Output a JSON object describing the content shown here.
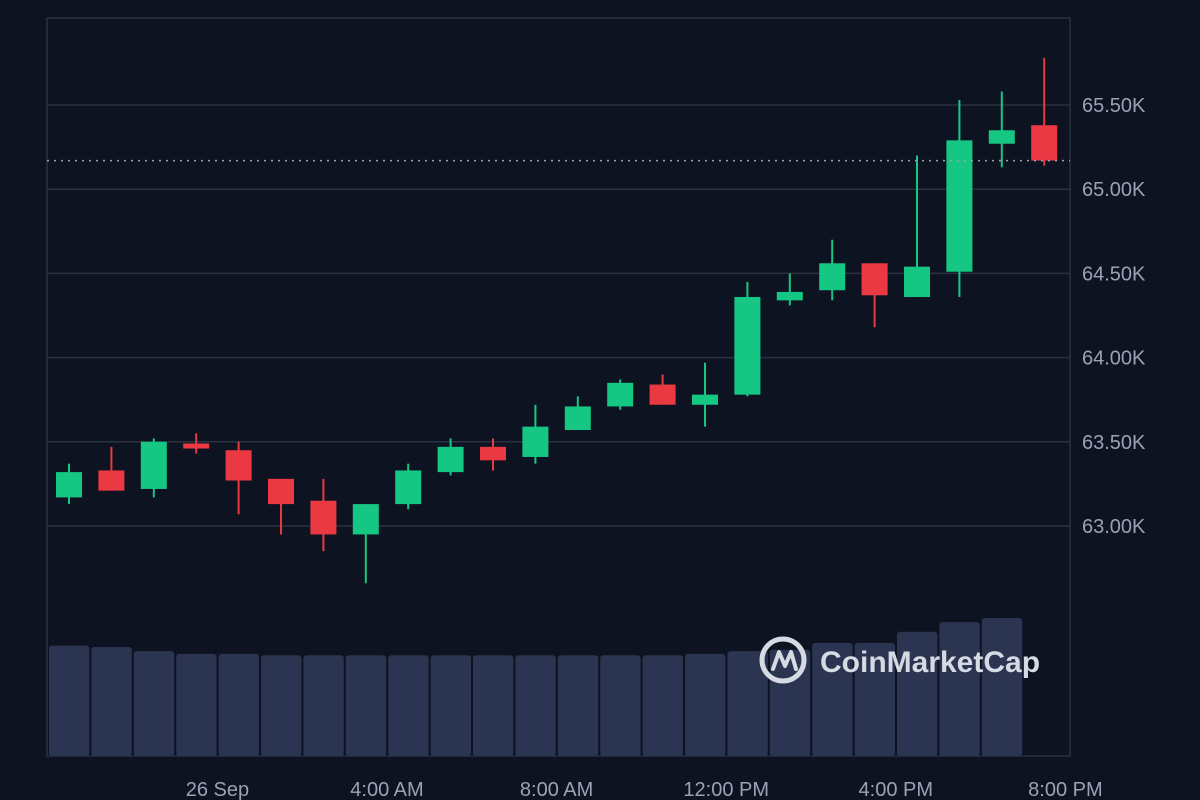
{
  "brand": {
    "name": "CoinMarketCap",
    "color": "#d6dae3"
  },
  "colors": {
    "background": "#0d1321",
    "grid": "#2a3140",
    "up": "#16c784",
    "down": "#ea3943",
    "volume": "#2b3450",
    "current_price_line": "#9aa3b5"
  },
  "chart_data": {
    "type": "candlestick",
    "title": "",
    "xlabel": "",
    "ylabel": "",
    "ylim": [
      62000,
      66500
    ],
    "y_ticks": [
      {
        "value": 63000,
        "label": "63.00K"
      },
      {
        "value": 63500,
        "label": "63.50K"
      },
      {
        "value": 64000,
        "label": "64.00K"
      },
      {
        "value": 64500,
        "label": "64.50K"
      },
      {
        "value": 65000,
        "label": "65.00K"
      },
      {
        "value": 65500,
        "label": "65.50K"
      }
    ],
    "x_ticks": [
      {
        "index": 3.5,
        "label": "26 Sep"
      },
      {
        "index": 7.5,
        "label": "4:00 AM"
      },
      {
        "index": 11.5,
        "label": "8:00 AM"
      },
      {
        "index": 15.5,
        "label": "12:00 PM"
      },
      {
        "index": 19.5,
        "label": "4:00 PM"
      },
      {
        "index": 23.5,
        "label": "8:00 PM"
      }
    ],
    "current_price": 65170,
    "candles": [
      {
        "open": 63170,
        "high": 63370,
        "low": 63130,
        "close": 63320
      },
      {
        "open": 63330,
        "high": 63470,
        "low": 63210,
        "close": 63210
      },
      {
        "open": 63220,
        "high": 63520,
        "low": 63170,
        "close": 63500
      },
      {
        "open": 63490,
        "high": 63550,
        "low": 63430,
        "close": 63460
      },
      {
        "open": 63450,
        "high": 63500,
        "low": 63070,
        "close": 63270
      },
      {
        "open": 63280,
        "high": 63280,
        "low": 62950,
        "close": 63130
      },
      {
        "open": 63150,
        "high": 63280,
        "low": 62850,
        "close": 62950
      },
      {
        "open": 62950,
        "high": 63130,
        "low": 62660,
        "close": 63130
      },
      {
        "open": 63130,
        "high": 63370,
        "low": 63100,
        "close": 63330
      },
      {
        "open": 63320,
        "high": 63520,
        "low": 63300,
        "close": 63470
      },
      {
        "open": 63470,
        "high": 63520,
        "low": 63330,
        "close": 63390
      },
      {
        "open": 63410,
        "high": 63720,
        "low": 63370,
        "close": 63590
      },
      {
        "open": 63570,
        "high": 63770,
        "low": 63570,
        "close": 63710
      },
      {
        "open": 63710,
        "high": 63870,
        "low": 63690,
        "close": 63850
      },
      {
        "open": 63840,
        "high": 63900,
        "low": 63720,
        "close": 63720
      },
      {
        "open": 63720,
        "high": 63970,
        "low": 63590,
        "close": 63780
      },
      {
        "open": 63780,
        "high": 64450,
        "low": 63770,
        "close": 64360
      },
      {
        "open": 64340,
        "high": 64500,
        "low": 64310,
        "close": 64390
      },
      {
        "open": 64400,
        "high": 64700,
        "low": 64340,
        "close": 64560
      },
      {
        "open": 64560,
        "high": 64560,
        "low": 64180,
        "close": 64370
      },
      {
        "open": 64360,
        "high": 65200,
        "low": 64360,
        "close": 64540
      },
      {
        "open": 64510,
        "high": 65530,
        "low": 64360,
        "close": 65290
      },
      {
        "open": 65270,
        "high": 65580,
        "low": 65130,
        "close": 65350
      },
      {
        "open": 65380,
        "high": 65780,
        "low": 65140,
        "close": 65170
      }
    ],
    "volume": [
      0.8,
      0.79,
      0.76,
      0.74,
      0.74,
      0.73,
      0.73,
      0.73,
      0.73,
      0.73,
      0.73,
      0.73,
      0.73,
      0.73,
      0.73,
      0.74,
      0.76,
      0.77,
      0.82,
      0.82,
      0.9,
      0.97,
      1.0
    ]
  }
}
